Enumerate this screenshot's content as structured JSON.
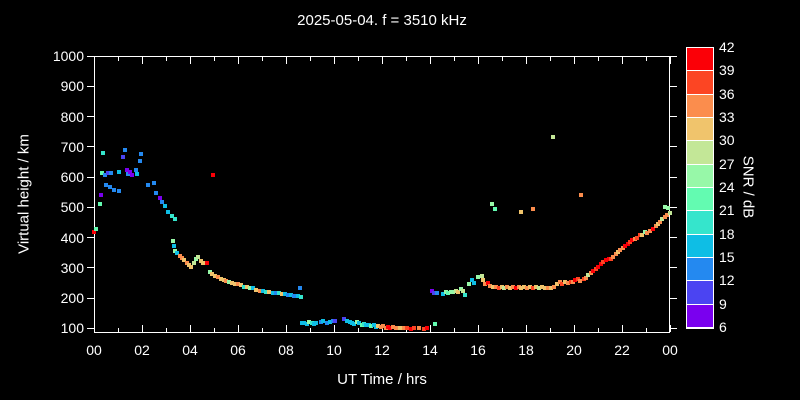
{
  "title": "2025-05-04. f = 3510 kHz",
  "axes": {
    "x": {
      "label": "UT Time / hrs",
      "min": 0,
      "max": 24,
      "minor_step": 1,
      "major_step": 2,
      "major_labels": [
        "00",
        "02",
        "04",
        "06",
        "08",
        "10",
        "12",
        "14",
        "16",
        "18",
        "20",
        "22",
        "00"
      ]
    },
    "y": {
      "label": "Virtual height / km",
      "min": 85,
      "max": 1000,
      "tick_values": [
        100,
        200,
        300,
        400,
        500,
        600,
        700,
        800,
        900,
        1000
      ],
      "tick_labels": [
        "100",
        "200",
        "300",
        "400",
        "500",
        "600",
        "700",
        "800",
        "900",
        "1000"
      ]
    }
  },
  "colorbar": {
    "label": "SNR / dB",
    "min": 6,
    "max": 42,
    "step": 3,
    "tick_labels_top_to_bottom": [
      "42",
      "39",
      "36",
      "33",
      "30",
      "27",
      "24",
      "21",
      "18",
      "15",
      "12",
      "9",
      "6"
    ],
    "colors_low_to_high": [
      "#7a00ef",
      "#4b44f2",
      "#2489f0",
      "#0ebee5",
      "#35e5cc",
      "#63fbb1",
      "#97f8a8",
      "#c3e797",
      "#f0c46c",
      "#fb8d4d",
      "#fc4523",
      "#fb0007"
    ]
  },
  "chart_data": {
    "type": "scatter",
    "title": "2025-05-04. f = 3510 kHz",
    "xlabel": "UT Time / hrs",
    "ylabel": "Virtual height / km",
    "color_label": "SNR / dB",
    "x_range": [
      0,
      24
    ],
    "y_range": [
      85,
      1000
    ],
    "snr_range": [
      6,
      42
    ],
    "grid": false,
    "marker": "square-4px",
    "points_t_h_snr": [
      [
        0.02,
        420,
        41
      ],
      [
        0.1,
        430,
        22
      ],
      [
        0.25,
        510,
        23
      ],
      [
        0.29,
        542,
        8
      ],
      [
        0.33,
        615,
        22
      ],
      [
        0.39,
        678,
        20
      ],
      [
        0.46,
        608,
        12
      ],
      [
        0.5,
        575,
        13
      ],
      [
        0.6,
        613,
        11
      ],
      [
        0.67,
        567,
        13
      ],
      [
        0.71,
        613,
        12
      ],
      [
        0.85,
        558,
        13
      ],
      [
        1.03,
        618,
        16
      ],
      [
        1.05,
        553,
        12
      ],
      [
        1.22,
        668,
        9
      ],
      [
        1.28,
        690,
        12
      ],
      [
        1.36,
        625,
        8
      ],
      [
        1.42,
        611,
        12
      ],
      [
        1.5,
        617,
        7
      ],
      [
        1.6,
        608,
        8
      ],
      [
        1.74,
        622,
        13
      ],
      [
        1.8,
        611,
        16
      ],
      [
        1.9,
        652,
        12
      ],
      [
        1.95,
        675,
        13
      ],
      [
        2.26,
        575,
        13
      ],
      [
        2.5,
        580,
        12
      ],
      [
        2.6,
        548,
        12
      ],
      [
        2.74,
        532,
        7
      ],
      [
        2.83,
        517,
        12
      ],
      [
        2.97,
        503,
        16
      ],
      [
        3.07,
        486,
        16
      ],
      [
        3.24,
        473,
        19
      ],
      [
        3.36,
        460,
        19
      ],
      [
        3.29,
        390,
        25
      ],
      [
        3.33,
        373,
        16
      ],
      [
        3.38,
        357,
        25
      ],
      [
        3.46,
        350,
        17
      ],
      [
        3.58,
        340,
        33
      ],
      [
        3.67,
        333,
        33
      ],
      [
        3.75,
        326,
        31
      ],
      [
        3.88,
        317,
        34
      ],
      [
        3.96,
        310,
        31
      ],
      [
        4.05,
        302,
        30
      ],
      [
        4.15,
        315,
        27
      ],
      [
        4.25,
        330,
        25
      ],
      [
        4.35,
        336,
        27
      ],
      [
        4.45,
        324,
        30
      ],
      [
        4.55,
        317,
        31
      ],
      [
        4.7,
        317,
        40
      ],
      [
        4.97,
        606,
        40
      ],
      [
        4.82,
        287,
        24
      ],
      [
        4.93,
        280,
        31
      ],
      [
        5.05,
        273,
        30
      ],
      [
        5.16,
        270,
        33
      ],
      [
        5.28,
        265,
        31
      ],
      [
        5.4,
        261,
        30
      ],
      [
        5.52,
        257,
        33
      ],
      [
        5.64,
        253,
        25
      ],
      [
        5.76,
        250,
        31
      ],
      [
        5.88,
        246,
        30
      ],
      [
        6.0,
        247,
        33
      ],
      [
        6.13,
        242,
        30
      ],
      [
        6.25,
        238,
        19
      ],
      [
        6.38,
        237,
        30
      ],
      [
        6.5,
        233,
        25
      ],
      [
        6.63,
        233,
        17
      ],
      [
        6.77,
        228,
        30
      ],
      [
        6.9,
        225,
        33
      ],
      [
        7.03,
        224,
        16
      ],
      [
        7.17,
        222,
        18
      ],
      [
        7.3,
        220,
        30
      ],
      [
        7.44,
        218,
        16
      ],
      [
        7.57,
        217,
        13
      ],
      [
        7.7,
        216,
        18
      ],
      [
        7.83,
        214,
        31
      ],
      [
        7.96,
        213,
        16
      ],
      [
        8.1,
        211,
        13
      ],
      [
        8.22,
        210,
        17
      ],
      [
        8.35,
        208,
        13
      ],
      [
        8.48,
        207,
        16
      ],
      [
        8.6,
        234,
        13
      ],
      [
        8.62,
        205,
        18
      ],
      [
        8.67,
        117,
        16
      ],
      [
        8.77,
        119,
        16
      ],
      [
        8.87,
        116,
        17
      ],
      [
        8.97,
        121,
        25
      ],
      [
        9.07,
        119,
        18
      ],
      [
        9.17,
        115,
        16
      ],
      [
        9.27,
        117,
        16
      ],
      [
        9.45,
        121,
        13
      ],
      [
        9.55,
        125,
        16
      ],
      [
        9.7,
        118,
        13
      ],
      [
        9.82,
        122,
        16
      ],
      [
        9.95,
        125,
        13
      ],
      [
        10.05,
        124,
        10
      ],
      [
        10.4,
        131,
        9
      ],
      [
        10.55,
        125,
        16
      ],
      [
        10.65,
        121,
        16
      ],
      [
        10.75,
        117,
        16
      ],
      [
        10.85,
        115,
        17
      ],
      [
        10.95,
        121,
        25
      ],
      [
        11.05,
        117,
        16
      ],
      [
        11.15,
        113,
        22
      ],
      [
        11.25,
        116,
        18
      ],
      [
        11.35,
        110,
        16
      ],
      [
        11.45,
        113,
        16
      ],
      [
        11.55,
        108,
        22
      ],
      [
        11.65,
        111,
        16
      ],
      [
        11.75,
        106,
        16
      ],
      [
        11.85,
        109,
        31
      ],
      [
        11.95,
        104,
        33
      ],
      [
        12.05,
        107,
        34
      ],
      [
        12.15,
        103,
        33
      ],
      [
        12.25,
        106,
        40
      ],
      [
        12.35,
        103,
        39
      ],
      [
        12.45,
        105,
        34
      ],
      [
        12.58,
        102,
        33
      ],
      [
        12.75,
        100,
        31
      ],
      [
        12.9,
        103,
        34
      ],
      [
        13.05,
        101,
        37
      ],
      [
        13.2,
        99,
        40
      ],
      [
        13.35,
        102,
        37
      ],
      [
        13.55,
        100,
        34
      ],
      [
        13.75,
        98,
        37
      ],
      [
        13.88,
        100,
        40
      ],
      [
        14.2,
        115,
        22
      ],
      [
        14.07,
        225,
        8
      ],
      [
        14.17,
        218,
        10
      ],
      [
        14.28,
        218,
        12
      ],
      [
        14.53,
        214,
        16
      ],
      [
        14.67,
        219,
        25
      ],
      [
        14.76,
        217,
        22
      ],
      [
        14.86,
        222,
        26
      ],
      [
        14.97,
        219,
        24
      ],
      [
        15.08,
        225,
        27
      ],
      [
        15.18,
        222,
        31
      ],
      [
        15.28,
        230,
        25
      ],
      [
        15.39,
        225,
        27
      ],
      [
        15.46,
        211,
        19
      ],
      [
        15.64,
        247,
        25
      ],
      [
        15.74,
        261,
        16
      ],
      [
        15.82,
        251,
        17
      ],
      [
        16.0,
        269,
        26
      ],
      [
        16.15,
        273,
        28
      ],
      [
        16.22,
        260,
        31
      ],
      [
        16.3,
        247,
        34
      ],
      [
        16.4,
        251,
        40
      ],
      [
        16.5,
        240,
        34
      ],
      [
        16.62,
        236,
        31
      ],
      [
        16.6,
        512,
        26
      ],
      [
        16.7,
        494,
        22
      ],
      [
        16.74,
        238,
        34
      ],
      [
        16.86,
        234,
        37
      ],
      [
        16.98,
        238,
        31
      ],
      [
        17.1,
        234,
        27
      ],
      [
        17.22,
        237,
        34
      ],
      [
        17.33,
        233,
        31
      ],
      [
        17.45,
        236,
        34
      ],
      [
        17.57,
        234,
        40
      ],
      [
        17.69,
        237,
        34
      ],
      [
        17.8,
        486,
        31
      ],
      [
        17.81,
        234,
        31
      ],
      [
        17.93,
        237,
        31
      ],
      [
        18.05,
        234,
        34
      ],
      [
        18.17,
        236,
        31
      ],
      [
        18.3,
        494,
        34
      ],
      [
        18.29,
        233,
        37
      ],
      [
        18.41,
        236,
        31
      ],
      [
        18.55,
        234,
        27
      ],
      [
        18.67,
        236,
        31
      ],
      [
        18.8,
        233,
        31
      ],
      [
        18.92,
        235,
        34
      ],
      [
        19.05,
        233,
        31
      ],
      [
        19.12,
        734,
        28
      ],
      [
        19.17,
        236,
        34
      ],
      [
        19.28,
        246,
        31
      ],
      [
        19.4,
        253,
        34
      ],
      [
        19.52,
        248,
        37
      ],
      [
        19.62,
        253,
        31
      ],
      [
        19.74,
        250,
        34
      ],
      [
        19.86,
        255,
        37
      ],
      [
        19.96,
        252,
        34
      ],
      [
        20.06,
        260,
        40
      ],
      [
        20.16,
        263,
        37
      ],
      [
        20.26,
        258,
        34
      ],
      [
        20.3,
        540,
        34
      ],
      [
        20.4,
        265,
        37
      ],
      [
        20.5,
        268,
        34
      ],
      [
        20.6,
        277,
        27
      ],
      [
        20.7,
        284,
        34
      ],
      [
        20.8,
        290,
        40
      ],
      [
        20.9,
        297,
        38
      ],
      [
        21.0,
        304,
        40
      ],
      [
        21.12,
        313,
        40
      ],
      [
        21.22,
        320,
        37
      ],
      [
        21.32,
        327,
        40
      ],
      [
        21.44,
        330,
        40
      ],
      [
        21.54,
        330,
        37
      ],
      [
        21.63,
        337,
        34
      ],
      [
        21.73,
        347,
        34
      ],
      [
        21.83,
        353,
        31
      ],
      [
        21.93,
        360,
        34
      ],
      [
        22.03,
        367,
        34
      ],
      [
        22.13,
        373,
        40
      ],
      [
        22.23,
        380,
        40
      ],
      [
        22.33,
        385,
        37
      ],
      [
        22.43,
        393,
        40
      ],
      [
        22.53,
        397,
        34
      ],
      [
        22.63,
        400,
        37
      ],
      [
        22.73,
        408,
        37
      ],
      [
        22.85,
        409,
        31
      ],
      [
        22.95,
        418,
        26
      ],
      [
        23.05,
        415,
        34
      ],
      [
        23.18,
        423,
        34
      ],
      [
        23.28,
        430,
        40
      ],
      [
        23.4,
        437,
        34
      ],
      [
        23.5,
        444,
        31
      ],
      [
        23.6,
        453,
        34
      ],
      [
        23.68,
        460,
        28
      ],
      [
        23.78,
        467,
        34
      ],
      [
        23.8,
        500,
        26
      ],
      [
        23.88,
        474,
        34
      ],
      [
        23.92,
        497,
        25
      ],
      [
        23.98,
        483,
        27
      ]
    ]
  }
}
